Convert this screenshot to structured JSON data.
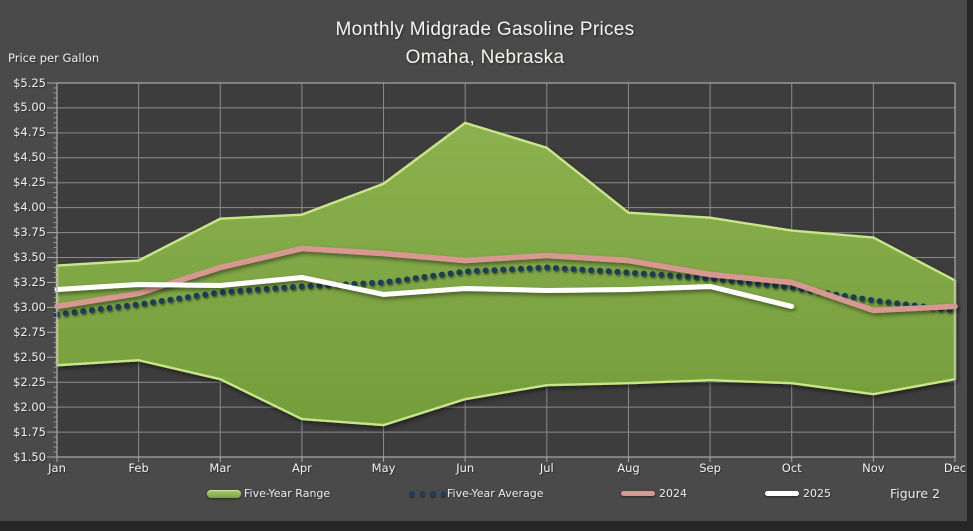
{
  "theme": {
    "outer_bg": "#4A4A4A",
    "plot_bg": "#3D3D3D",
    "grid": "#A6A6A6",
    "text": "#F2F2F2",
    "edge_strip": "#262626"
  },
  "chart_data": {
    "type": "area",
    "title": "Monthly Midgrade Gasoline Prices",
    "subtitle": "Omaha, Nebraska",
    "ylabel": "Price per Gallon",
    "xlabel": "",
    "categories": [
      "Jan",
      "Feb",
      "Mar",
      "Apr",
      "May",
      "Jun",
      "Jul",
      "Aug",
      "Sep",
      "Oct",
      "Nov",
      "Dec"
    ],
    "ylim": [
      1.5,
      5.25
    ],
    "ytick_step": 0.25,
    "ytick_prefix": "$",
    "grid": true,
    "legend_position": "bottom",
    "series": [
      {
        "name": "Five-Year Range",
        "type": "range_area",
        "low": [
          2.42,
          2.47,
          2.28,
          1.88,
          1.82,
          2.08,
          2.22,
          2.24,
          2.27,
          2.24,
          2.13,
          2.28
        ],
        "high": [
          3.42,
          3.47,
          3.89,
          3.93,
          4.24,
          4.85,
          4.6,
          3.95,
          3.9,
          3.77,
          3.7,
          3.27
        ],
        "fill": "#7CA341",
        "fill_top": "#8CB150",
        "fill_bottom": "#749D3B",
        "edge": "#C9E588"
      },
      {
        "name": "Five-Year Average",
        "type": "dotted_line",
        "values": [
          2.93,
          3.03,
          3.15,
          3.21,
          3.25,
          3.36,
          3.4,
          3.35,
          3.29,
          3.2,
          3.07,
          2.97
        ],
        "color": "#1F3C59"
      },
      {
        "name": "2024",
        "type": "line",
        "values": [
          3.01,
          3.14,
          3.4,
          3.59,
          3.54,
          3.47,
          3.52,
          3.47,
          3.33,
          3.25,
          2.97,
          3.01
        ],
        "color": "#D99792"
      },
      {
        "name": "2025",
        "type": "line",
        "values": [
          3.18,
          3.23,
          3.22,
          3.3,
          3.13,
          3.19,
          3.17,
          3.18,
          3.21,
          3.01
        ],
        "color": "#FFFFFF"
      }
    ],
    "annotation": "Figure 2"
  }
}
